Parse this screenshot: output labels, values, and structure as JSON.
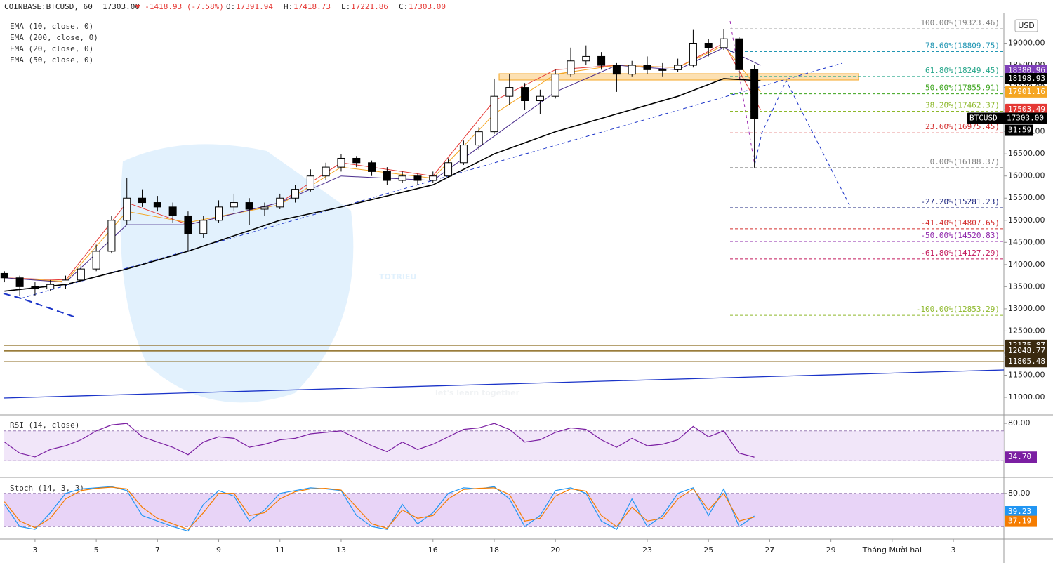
{
  "header": {
    "symbol": "COINBASE:BTCUSD, 60",
    "last": "17303.00",
    "change": "▼ -1418.93 (-7.58%)",
    "ohlc": [
      {
        "label": "O:",
        "value": "17391.94"
      },
      {
        "label": "H:",
        "value": "17418.73"
      },
      {
        "label": "L:",
        "value": "17221.86"
      },
      {
        "label": "C:",
        "value": "17303.00"
      }
    ]
  },
  "watermark": {
    "title": "TOTRIEU",
    "subtitle": "let's learn together"
  },
  "chart_data": {
    "type": "candlestick",
    "currency": "USD",
    "xlim": [
      1.97,
      34.65
    ],
    "xticks": [
      3,
      5,
      7,
      9,
      11,
      13,
      16,
      18,
      20,
      23,
      25,
      27,
      29,
      {
        "value": 31,
        "label": "Tháng Mười hai"
      },
      {
        "value": 33,
        "label": "3"
      }
    ],
    "ylim": [
      10620,
      19690
    ],
    "yticks": [
      {
        "value": 11000,
        "label": "11000.00"
      },
      {
        "value": 11500,
        "label": "11500.00"
      },
      {
        "value": 12000,
        "label": "12000.00"
      },
      {
        "value": 12500,
        "label": "12500.00"
      },
      {
        "value": 13000,
        "label": "13000.00"
      },
      {
        "value": 13500,
        "label": "13500.00"
      },
      {
        "value": 14000,
        "label": "14000.00"
      },
      {
        "value": 14500,
        "label": "14500.00"
      },
      {
        "value": 15000,
        "label": "15000.00"
      },
      {
        "value": 15500,
        "label": "15500.00"
      },
      {
        "value": 16000,
        "label": "16000.00"
      },
      {
        "value": 16500,
        "label": "16500.00"
      },
      {
        "value": 17000,
        "label": "17000.00"
      },
      {
        "value": 17500,
        "label": "17500.00"
      },
      {
        "value": 18000,
        "label": "18000.00"
      },
      {
        "value": 18500,
        "label": "18500.00"
      },
      {
        "value": 19000,
        "label": "19000.00"
      }
    ],
    "x": [
      2,
      2.5,
      3,
      3.5,
      4,
      4.5,
      5,
      5.5,
      6,
      6.5,
      7,
      7.5,
      8,
      8.5,
      9,
      9.5,
      10,
      10.5,
      11,
      11.5,
      12,
      12.5,
      13,
      13.5,
      14,
      14.5,
      15,
      15.5,
      16,
      16.5,
      17,
      17.5,
      18,
      18.5,
      19,
      19.5,
      20,
      20.5,
      21,
      21.5,
      22,
      22.5,
      23,
      23.5,
      24,
      24.5,
      25,
      25.5,
      26,
      26.5
    ],
    "candles": [
      [
        13800,
        13850,
        13600,
        13700
      ],
      [
        13700,
        13750,
        13300,
        13500
      ],
      [
        13500,
        13600,
        13300,
        13450
      ],
      [
        13450,
        13650,
        13400,
        13550
      ],
      [
        13550,
        13750,
        13450,
        13650
      ],
      [
        13650,
        14000,
        13600,
        13900
      ],
      [
        13900,
        14450,
        13850,
        14300
      ],
      [
        14300,
        15100,
        14250,
        15000
      ],
      [
        15000,
        15950,
        14900,
        15500
      ],
      [
        15500,
        15700,
        15300,
        15400
      ],
      [
        15400,
        15550,
        15200,
        15300
      ],
      [
        15300,
        15400,
        14950,
        15100
      ],
      [
        15100,
        15200,
        14300,
        14700
      ],
      [
        14700,
        15100,
        14600,
        15000
      ],
      [
        15000,
        15450,
        14950,
        15300
      ],
      [
        15300,
        15600,
        15200,
        15400
      ],
      [
        15400,
        15500,
        14900,
        15250
      ],
      [
        15250,
        15400,
        15100,
        15300
      ],
      [
        15300,
        15600,
        15250,
        15500
      ],
      [
        15500,
        15800,
        15400,
        15700
      ],
      [
        15700,
        16150,
        15650,
        16000
      ],
      [
        16000,
        16300,
        15900,
        16200
      ],
      [
        16200,
        16500,
        16100,
        16400
      ],
      [
        16400,
        16450,
        16200,
        16300
      ],
      [
        16300,
        16350,
        16000,
        16100
      ],
      [
        16100,
        16200,
        15800,
        15900
      ],
      [
        15900,
        16100,
        15850,
        16000
      ],
      [
        16000,
        16050,
        15800,
        15900
      ],
      [
        15900,
        16100,
        15850,
        16000
      ],
      [
        16000,
        16400,
        15950,
        16300
      ],
      [
        16300,
        16800,
        16250,
        16700
      ],
      [
        16700,
        17100,
        16600,
        17000
      ],
      [
        17000,
        18200,
        16950,
        17800
      ],
      [
        17800,
        18300,
        17600,
        18000
      ],
      [
        18000,
        18100,
        17500,
        17700
      ],
      [
        17700,
        17950,
        17400,
        17800
      ],
      [
        17800,
        18400,
        17750,
        18300
      ],
      [
        18300,
        18900,
        18250,
        18600
      ],
      [
        18600,
        18950,
        18500,
        18700
      ],
      [
        18700,
        18800,
        18400,
        18500
      ],
      [
        18500,
        18550,
        17900,
        18300
      ],
      [
        18300,
        18600,
        18250,
        18500
      ],
      [
        18500,
        18700,
        18300,
        18400
      ],
      [
        18400,
        18550,
        18250,
        18400
      ],
      [
        18400,
        18650,
        18350,
        18500
      ],
      [
        18500,
        19300,
        18450,
        19000
      ],
      [
        19000,
        19100,
        18700,
        18900
      ],
      [
        18900,
        19323,
        18850,
        19100
      ],
      [
        19100,
        19150,
        18200,
        18400
      ],
      [
        18400,
        18500,
        16188,
        17303
      ]
    ],
    "ema_x": [
      2,
      4,
      6,
      8,
      11,
      13,
      16,
      18,
      20,
      22,
      24,
      25.5,
      26.7
    ],
    "emas": [
      {
        "name": "EMA (10, close, 0)",
        "color": "#e53935",
        "values": [
          13700,
          13650,
          15400,
          14900,
          15400,
          16300,
          16000,
          17700,
          18400,
          18500,
          18450,
          19000,
          17500
        ]
      },
      {
        "name": "EMA (200, close, 0)",
        "color": "#000000",
        "values": [
          13400,
          13550,
          13900,
          14300,
          15000,
          15300,
          15800,
          16500,
          17000,
          17400,
          17800,
          18200,
          18150
        ]
      },
      {
        "name": "EMA (20, close, 0)",
        "color": "#f5a623",
        "values": [
          13700,
          13620,
          15200,
          14950,
          15350,
          16200,
          15950,
          17400,
          18300,
          18500,
          18450,
          18950,
          17900
        ]
      },
      {
        "name": "EMA (50, close, 0)",
        "color": "#4a2d8c",
        "values": [
          13700,
          13600,
          14900,
          14900,
          15400,
          16000,
          15900,
          16900,
          17900,
          18500,
          18400,
          18900,
          18500
        ]
      }
    ],
    "fib": [
      {
        "label": "100.00%(19323.46)",
        "value": 19323.46,
        "color": "#808080"
      },
      {
        "label": "78.60%(18809.75)",
        "value": 18809.75,
        "color": "#2196b3"
      },
      {
        "label": "61.80%(18249.45)",
        "value": 18249.45,
        "color": "#26a68a"
      },
      {
        "label": "50.00%(17855.91)",
        "value": 17855.91,
        "color": "#3aa31a"
      },
      {
        "label": "38.20%(17462.37)",
        "value": 17462.37,
        "color": "#8db82a"
      },
      {
        "label": "23.60%(16975.45)",
        "value": 16975.45,
        "color": "#d32f2f"
      },
      {
        "label": "0.00%(16188.37)",
        "value": 16188.37,
        "color": "#808080"
      },
      {
        "label": "-27.20%(15281.23)",
        "value": 15281.23,
        "color": "#1a237e"
      },
      {
        "label": "-41.40%(14807.65)",
        "value": 14807.65,
        "color": "#d32f2f"
      },
      {
        "label": "-50.00%(14520.83)",
        "value": 14520.83,
        "color": "#8e24aa"
      },
      {
        "label": "-61.80%(14127.29)",
        "value": 14127.29,
        "color": "#c2185b"
      },
      {
        "label": "-100.00%(12853.29)",
        "value": 12853.29,
        "color": "#8db82a"
      }
    ],
    "supports": [
      12175.87,
      12048.77,
      11805.48
    ],
    "price_tags": [
      {
        "value": 18380.96,
        "color": "#7e3fb8"
      },
      {
        "value": 18198.93,
        "color": "#000000"
      },
      {
        "value": 17901.16,
        "color": "#f5a623"
      },
      {
        "value": 17503.49,
        "color": "#e53935"
      },
      {
        "name": "BTCUSD",
        "value": 17303,
        "label": "17303.00",
        "countdown": "31:59",
        "color": "#000000"
      },
      {
        "value": 12175.87,
        "color": "#3a2a10"
      },
      {
        "value": 12048.77,
        "color": "#3a2a10"
      },
      {
        "value": 11805.48,
        "color": "#3a2a10"
      }
    ],
    "rsi": {
      "title": "RSI (14, close)",
      "color": "#7b1fa2",
      "ylim": [
        9.5,
        90.5
      ],
      "yticks": [
        {
          "value": 80,
          "label": "80.00"
        }
      ],
      "bands": [
        70,
        30
      ],
      "value_tag": {
        "value": 34.7,
        "label": "34.70"
      },
      "values": [
        55,
        40,
        35,
        45,
        50,
        58,
        70,
        78,
        80,
        62,
        55,
        48,
        38,
        55,
        62,
        60,
        48,
        52,
        58,
        60,
        66,
        68,
        70,
        60,
        50,
        42,
        55,
        45,
        52,
        62,
        72,
        74,
        80,
        72,
        55,
        58,
        68,
        74,
        72,
        58,
        48,
        60,
        50,
        52,
        58,
        76,
        62,
        70,
        40,
        34.7
      ]
    },
    "stoch": {
      "title": "Stoch (14, 3, 3)",
      "ylim": [
        -1.25,
        106.25
      ],
      "yticks": [
        {
          "value": 80,
          "label": "80.00"
        }
      ],
      "bands": [
        80,
        20
      ],
      "k": {
        "color": "#2196f3",
        "values": [
          60,
          20,
          15,
          45,
          80,
          88,
          90,
          92,
          85,
          40,
          30,
          20,
          12,
          60,
          85,
          75,
          30,
          50,
          80,
          85,
          90,
          88,
          85,
          40,
          20,
          15,
          60,
          25,
          45,
          80,
          90,
          88,
          92,
          70,
          20,
          40,
          85,
          90,
          80,
          30,
          15,
          70,
          20,
          40,
          80,
          90,
          40,
          88,
          20,
          39.23
        ],
        "value_tag": {
          "value": 39.23,
          "label": "39.23"
        }
      },
      "d": {
        "color": "#f57c00",
        "values": [
          65,
          30,
          18,
          35,
          70,
          85,
          89,
          91,
          88,
          55,
          35,
          25,
          15,
          45,
          80,
          80,
          40,
          45,
          70,
          83,
          88,
          89,
          86,
          55,
          25,
          17,
          50,
          35,
          40,
          70,
          87,
          89,
          90,
          78,
          30,
          35,
          75,
          88,
          84,
          40,
          20,
          55,
          30,
          35,
          70,
          88,
          50,
          80,
          30,
          37.19
        ],
        "value_tag": {
          "value": 37.19,
          "label": "37.19"
        }
      }
    }
  }
}
